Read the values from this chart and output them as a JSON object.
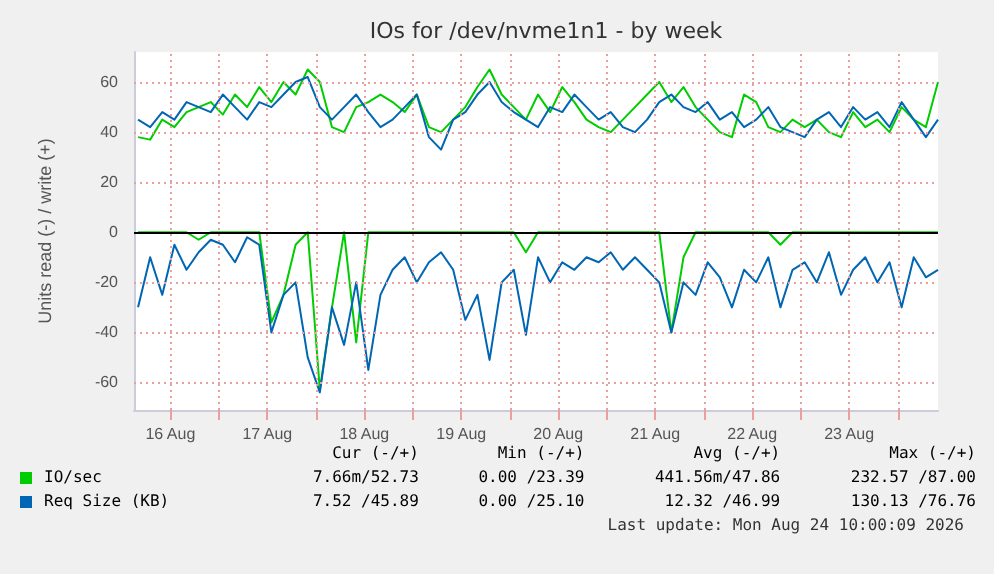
{
  "chart_data": {
    "type": "line",
    "title": "IOs for /dev/nvme1n1 - by week",
    "ylabel": "Units read (-) / write (+)",
    "x": [
      "2026-08-16T04:00",
      "2026-08-16T07:00",
      "2026-08-16T10:00",
      "2026-08-16T13:00",
      "2026-08-16T16:00",
      "2026-08-16T19:00",
      "2026-08-16T22:00",
      "2026-08-17T01:00",
      "2026-08-17T04:00",
      "2026-08-17T07:00",
      "2026-08-17T10:00",
      "2026-08-17T13:00",
      "2026-08-17T16:00",
      "2026-08-17T19:00",
      "2026-08-17T22:00",
      "2026-08-18T01:00",
      "2026-08-18T04:00",
      "2026-08-18T07:00",
      "2026-08-18T10:00",
      "2026-08-18T13:00",
      "2026-08-18T16:00",
      "2026-08-18T19:00",
      "2026-08-18T22:00",
      "2026-08-19T01:00",
      "2026-08-19T04:00",
      "2026-08-19T07:00",
      "2026-08-19T10:00",
      "2026-08-19T13:00",
      "2026-08-19T16:00",
      "2026-08-19T19:00",
      "2026-08-19T22:00",
      "2026-08-20T01:00",
      "2026-08-20T04:00",
      "2026-08-20T07:00",
      "2026-08-20T10:00",
      "2026-08-20T13:00",
      "2026-08-20T16:00",
      "2026-08-20T19:00",
      "2026-08-20T22:00",
      "2026-08-21T01:00",
      "2026-08-21T04:00",
      "2026-08-21T07:00",
      "2026-08-21T10:00",
      "2026-08-21T13:00",
      "2026-08-21T16:00",
      "2026-08-21T19:00",
      "2026-08-21T22:00",
      "2026-08-22T01:00",
      "2026-08-22T04:00",
      "2026-08-22T07:00",
      "2026-08-22T10:00",
      "2026-08-22T13:00",
      "2026-08-22T16:00",
      "2026-08-22T19:00",
      "2026-08-22T22:00",
      "2026-08-23T01:00",
      "2026-08-23T04:00",
      "2026-08-23T07:00",
      "2026-08-23T10:00",
      "2026-08-23T13:00",
      "2026-08-23T16:00",
      "2026-08-23T19:00",
      "2026-08-23T22:00",
      "2026-08-24T01:00",
      "2026-08-24T04:00",
      "2026-08-24T07:00",
      "2026-08-24T10:00"
    ],
    "series": [
      {
        "color": "#00cc00",
        "values": [
          0,
          0,
          0,
          0,
          0,
          -3,
          0,
          0,
          0,
          0,
          0,
          -36,
          -25,
          -5,
          0,
          -63,
          -30,
          0,
          -44,
          0,
          0,
          0,
          0,
          0,
          0,
          0,
          0,
          0,
          0,
          0,
          0,
          0,
          -8,
          0,
          0,
          0,
          0,
          0,
          0,
          0,
          0,
          0,
          0,
          0,
          -40,
          -10,
          0,
          0,
          0,
          0,
          0,
          0,
          0,
          -5,
          0,
          0,
          0,
          0,
          0,
          0,
          0,
          0,
          0,
          0,
          0,
          0,
          0
        ]
      },
      {
        "color": "#0066b3",
        "values": [
          -30,
          -10,
          -25,
          -5,
          -15,
          -8,
          -3,
          -5,
          -12,
          -2,
          -5,
          -40,
          -25,
          -20,
          -50,
          -64,
          -30,
          -45,
          -20,
          -55,
          -25,
          -15,
          -10,
          -20,
          -12,
          -8,
          -15,
          -35,
          -25,
          -51,
          -20,
          -15,
          -41,
          -10,
          -20,
          -12,
          -15,
          -10,
          -12,
          -8,
          -15,
          -10,
          -15,
          -20,
          -40,
          -20,
          -25,
          -12,
          -18,
          -30,
          -15,
          -20,
          -10,
          -30,
          -15,
          -12,
          -20,
          -8,
          -25,
          -15,
          -10,
          -20,
          -12,
          -30,
          -10,
          -18,
          -15
        ]
      },
      {
        "name": "IO/sec",
        "color": "#00cc00",
        "values": [
          38,
          37,
          45,
          42,
          48,
          50,
          52,
          47,
          55,
          50,
          58,
          52,
          60,
          55,
          65,
          60,
          42,
          40,
          50,
          52,
          55,
          52,
          48,
          55,
          42,
          40,
          45,
          50,
          58,
          65,
          55,
          50,
          45,
          55,
          48,
          58,
          52,
          45,
          42,
          40,
          45,
          50,
          55,
          60,
          52,
          58,
          50,
          45,
          40,
          38,
          55,
          52,
          42,
          40,
          45,
          42,
          45,
          40,
          38,
          48,
          42,
          45,
          40,
          50,
          45,
          42,
          60
        ]
      },
      {
        "name": "Req Size (KB)",
        "color": "#0066b3",
        "values": [
          45,
          42,
          48,
          45,
          52,
          50,
          48,
          55,
          50,
          45,
          52,
          50,
          55,
          60,
          62,
          50,
          45,
          50,
          55,
          48,
          42,
          45,
          50,
          55,
          38,
          33,
          45,
          48,
          55,
          60,
          52,
          48,
          45,
          42,
          50,
          48,
          55,
          50,
          45,
          48,
          42,
          40,
          45,
          52,
          55,
          50,
          48,
          52,
          45,
          48,
          42,
          45,
          50,
          42,
          40,
          38,
          45,
          48,
          42,
          50,
          45,
          48,
          42,
          52,
          45,
          38,
          45
        ]
      }
    ],
    "xlim": [
      "2026-08-16T03:00",
      "2026-08-24T10:00"
    ],
    "xticks": [
      {
        "value": "2026-08-16T12:00",
        "label": "16 Aug"
      },
      {
        "value": "2026-08-17T00:00",
        "label": null
      },
      {
        "value": "2026-08-17T12:00",
        "label": "17 Aug"
      },
      {
        "value": "2026-08-18T00:00",
        "label": null
      },
      {
        "value": "2026-08-18T12:00",
        "label": "18 Aug"
      },
      {
        "value": "2026-08-19T00:00",
        "label": null
      },
      {
        "value": "2026-08-19T12:00",
        "label": "19 Aug"
      },
      {
        "value": "2026-08-20T00:00",
        "label": null
      },
      {
        "value": "2026-08-20T12:00",
        "label": "20 Aug"
      },
      {
        "value": "2026-08-21T00:00",
        "label": null
      },
      {
        "value": "2026-08-21T12:00",
        "label": "21 Aug"
      },
      {
        "value": "2026-08-22T00:00",
        "label": null
      },
      {
        "value": "2026-08-22T12:00",
        "label": "22 Aug"
      },
      {
        "value": "2026-08-23T00:00",
        "label": null
      },
      {
        "value": "2026-08-23T12:00",
        "label": "23 Aug"
      },
      {
        "value": "2026-08-24T00:00",
        "label": null
      }
    ],
    "ylim": [
      -71,
      72
    ],
    "yticks": [
      -60,
      -40,
      -20,
      0,
      20,
      40,
      60
    ],
    "ref_lines": [
      {
        "axis": "y",
        "value": 0,
        "color": "#000000"
      }
    ],
    "grid": true,
    "legend": "bottom",
    "marker": "none",
    "annotations": [
      "Cur (-/+)",
      "Min (-/+)",
      "Avg (-/+)",
      "Max (-/+)",
      "7.66m/52.73",
      "0.00 /23.39",
      "441.56m/47.86",
      "232.57 /87.00",
      "7.52 /45.89",
      "0.00 /25.10",
      "12.32 /46.99",
      "130.13 /76.76",
      "Last update: Mon Aug 24 10:00:09 2026"
    ]
  }
}
